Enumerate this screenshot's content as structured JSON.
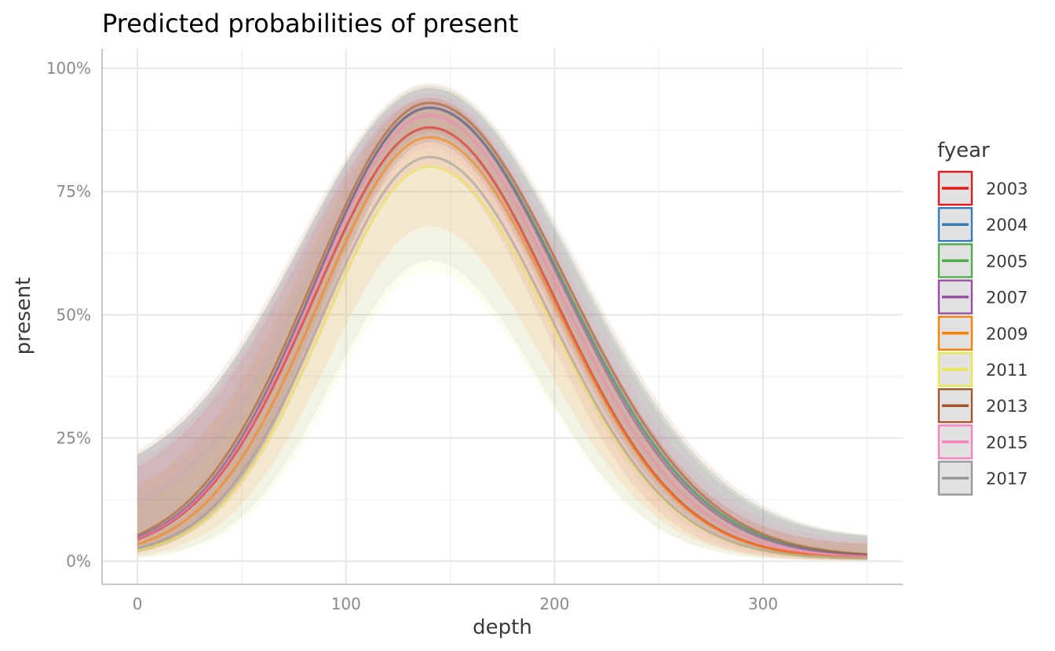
{
  "chart_data": {
    "type": "line",
    "title": "Predicted probabilities of present",
    "xlabel": "depth",
    "ylabel": "present",
    "xlim": [
      -17,
      367
    ],
    "ylim": [
      -0.047,
      1.04
    ],
    "x_ticks": [
      0,
      100,
      200,
      300
    ],
    "x_tick_labels": [
      "0",
      "100",
      "200",
      "300"
    ],
    "x_minor_ticks": [
      50,
      150,
      250,
      350
    ],
    "y_ticks": [
      0,
      0.25,
      0.5,
      0.75,
      1.0
    ],
    "y_tick_labels": [
      "0%",
      "25%",
      "50%",
      "75%",
      "100%"
    ],
    "y_minor_ticks": [
      0.125,
      0.375,
      0.625,
      0.875
    ],
    "grid": true,
    "legend_title": "fyear",
    "legend_position": "right",
    "x_range": [
      0,
      350
    ],
    "peak_depth": 140,
    "series": [
      {
        "name": "2003",
        "color": "#E41A1C",
        "peak": 0.88,
        "left_width": 55,
        "right_width": 60,
        "at_0": 0.01,
        "at_350": 0.006,
        "ci_lower_peak": 0.8,
        "ci_upper_peak": 0.94
      },
      {
        "name": "2004",
        "color": "#377EB8",
        "peak": 0.92,
        "left_width": 55,
        "right_width": 65,
        "at_0": 0.012,
        "at_350": 0.008,
        "ci_lower_peak": 0.86,
        "ci_upper_peak": 0.96
      },
      {
        "name": "2005",
        "color": "#4DAF4A",
        "peak": 0.92,
        "left_width": 55,
        "right_width": 65,
        "at_0": 0.012,
        "at_350": 0.008,
        "ci_lower_peak": 0.85,
        "ci_upper_peak": 0.965
      },
      {
        "name": "2007",
        "color": "#984EA3",
        "peak": 0.92,
        "left_width": 55,
        "right_width": 64,
        "at_0": 0.012,
        "at_350": 0.008,
        "ci_lower_peak": 0.85,
        "ci_upper_peak": 0.96
      },
      {
        "name": "2009",
        "color": "#FF7F00",
        "peak": 0.86,
        "left_width": 53,
        "right_width": 60,
        "at_0": 0.008,
        "at_350": 0.006,
        "ci_lower_peak": 0.68,
        "ci_upper_peak": 0.94
      },
      {
        "name": "2011",
        "color": "#E8E84A",
        "peak": 0.8,
        "left_width": 50,
        "right_width": 58,
        "at_0": 0.006,
        "at_350": 0.005,
        "ci_lower_peak": 0.59,
        "ci_upper_peak": 0.92
      },
      {
        "name": "2013",
        "color": "#A65628",
        "peak": 0.93,
        "left_width": 56,
        "right_width": 66,
        "at_0": 0.012,
        "at_350": 0.008,
        "ci_lower_peak": 0.87,
        "ci_upper_peak": 0.97
      },
      {
        "name": "2015",
        "color": "#F781BF",
        "peak": 0.905,
        "left_width": 55,
        "right_width": 62,
        "at_0": 0.011,
        "at_350": 0.007,
        "ci_lower_peak": 0.84,
        "ci_upper_peak": 0.95
      },
      {
        "name": "2017",
        "color": "#999999",
        "peak": 0.82,
        "left_width": 51,
        "right_width": 58,
        "at_0": 0.007,
        "at_350": 0.005,
        "ci_lower_peak": 0.61,
        "ci_upper_peak": 0.93
      }
    ]
  }
}
